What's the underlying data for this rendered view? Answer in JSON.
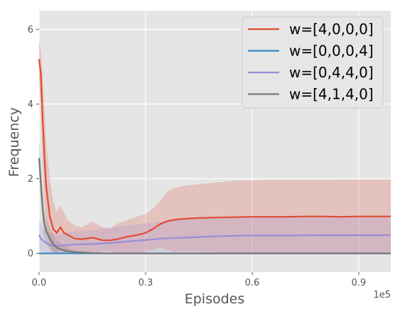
{
  "chart_data": {
    "type": "line",
    "title": "",
    "xlabel": "Episodes",
    "ylabel": "Frequency",
    "x_offset_label": "1e5",
    "xlim": [
      0.0,
      0.99
    ],
    "ylim": [
      -0.5,
      6.5
    ],
    "xticks": [
      0.0,
      0.3,
      0.6,
      0.9
    ],
    "xtick_labels": [
      "0.0",
      "0.3",
      "0.6",
      "0.9"
    ],
    "yticks": [
      0,
      2,
      4,
      6
    ],
    "ytick_labels": [
      "0",
      "2",
      "4",
      "6"
    ],
    "grid": true,
    "legend_position": "top-right",
    "series": [
      {
        "name": "w=[4,0,0,0]",
        "color": "#E24A33",
        "x": [
          0.0,
          0.005,
          0.01,
          0.015,
          0.02,
          0.03,
          0.04,
          0.05,
          0.06,
          0.07,
          0.08,
          0.1,
          0.12,
          0.15,
          0.18,
          0.2,
          0.22,
          0.25,
          0.28,
          0.3,
          0.32,
          0.34,
          0.36,
          0.38,
          0.4,
          0.45,
          0.5,
          0.55,
          0.6,
          0.65,
          0.7,
          0.75,
          0.8,
          0.85,
          0.9,
          0.95,
          0.99
        ],
        "y": [
          5.2,
          4.8,
          3.6,
          2.6,
          1.8,
          1.0,
          0.65,
          0.55,
          0.7,
          0.55,
          0.5,
          0.4,
          0.38,
          0.42,
          0.35,
          0.35,
          0.38,
          0.45,
          0.5,
          0.55,
          0.65,
          0.78,
          0.86,
          0.9,
          0.92,
          0.95,
          0.96,
          0.97,
          0.98,
          0.98,
          0.98,
          0.99,
          0.99,
          0.98,
          0.99,
          0.99,
          0.99
        ],
        "band_upper": [
          5.7,
          5.4,
          4.8,
          3.8,
          3.0,
          2.0,
          1.4,
          1.1,
          1.3,
          1.1,
          0.9,
          0.75,
          0.7,
          0.85,
          0.7,
          0.65,
          0.8,
          0.9,
          1.0,
          1.05,
          1.2,
          1.4,
          1.65,
          1.75,
          1.8,
          1.85,
          1.9,
          1.95,
          1.95,
          1.97,
          1.97,
          1.97,
          1.97,
          1.97,
          1.98,
          1.98,
          1.98
        ],
        "band_lower": [
          4.6,
          4.0,
          2.4,
          1.4,
          0.7,
          0.2,
          0.05,
          0.0,
          0.1,
          0.0,
          0.05,
          0.05,
          0.05,
          0.0,
          0.05,
          0.05,
          0.0,
          0.0,
          0.0,
          0.05,
          0.1,
          0.15,
          0.1,
          0.05,
          0.05,
          0.05,
          0.02,
          0.0,
          0.0,
          0.0,
          0.0,
          0.0,
          0.0,
          0.0,
          0.0,
          0.0,
          0.0
        ]
      },
      {
        "name": "w=[0,0,0,4]",
        "color": "#348ABD",
        "x": [
          0.0,
          0.05,
          0.1,
          0.2,
          0.3,
          0.4,
          0.5,
          0.6,
          0.7,
          0.8,
          0.9,
          0.99
        ],
        "y": [
          0.0,
          0.0,
          0.0,
          0.0,
          0.0,
          0.0,
          0.0,
          0.0,
          0.0,
          0.0,
          0.0,
          0.0
        ]
      },
      {
        "name": "w=[0,4,4,0]",
        "color": "#988ED5",
        "x": [
          0.0,
          0.005,
          0.01,
          0.02,
          0.03,
          0.05,
          0.08,
          0.1,
          0.15,
          0.2,
          0.25,
          0.3,
          0.35,
          0.4,
          0.45,
          0.5,
          0.55,
          0.6,
          0.65,
          0.7,
          0.8,
          0.9,
          0.99
        ],
        "y": [
          0.5,
          0.4,
          0.35,
          0.28,
          0.22,
          0.2,
          0.22,
          0.24,
          0.25,
          0.28,
          0.32,
          0.36,
          0.4,
          0.42,
          0.44,
          0.46,
          0.47,
          0.48,
          0.48,
          0.48,
          0.49,
          0.49,
          0.49
        ],
        "band_upper": [
          0.9,
          0.8,
          0.7,
          0.6,
          0.55,
          0.5,
          0.55,
          0.6,
          0.62,
          0.7,
          0.75,
          0.8,
          0.85,
          0.9,
          0.93,
          0.95,
          0.97,
          0.98,
          0.98,
          0.98,
          0.98,
          0.98,
          0.98
        ],
        "band_lower": [
          0.1,
          0.05,
          0.02,
          0.0,
          0.0,
          0.0,
          0.0,
          0.0,
          0.0,
          0.0,
          0.0,
          0.0,
          0.0,
          0.0,
          0.0,
          0.0,
          0.0,
          0.0,
          0.0,
          0.0,
          0.0,
          0.0,
          0.0
        ]
      },
      {
        "name": "w=[4,1,4,0]",
        "color": "#777777",
        "x": [
          0.0,
          0.005,
          0.01,
          0.015,
          0.02,
          0.03,
          0.04,
          0.05,
          0.07,
          0.1,
          0.15,
          0.2,
          0.3,
          0.4,
          0.5,
          0.6,
          0.7,
          0.8,
          0.9,
          0.99
        ],
        "y": [
          2.55,
          1.9,
          1.2,
          0.8,
          0.6,
          0.4,
          0.25,
          0.15,
          0.08,
          0.03,
          0.01,
          0.0,
          0.0,
          0.0,
          0.0,
          0.0,
          0.0,
          0.0,
          0.0,
          0.0
        ],
        "band_upper": [
          3.0,
          2.4,
          1.7,
          1.2,
          0.95,
          0.7,
          0.5,
          0.35,
          0.2,
          0.08,
          0.03,
          0.01,
          0.01,
          0.01,
          0.01,
          0.01,
          0.01,
          0.01,
          0.01,
          0.01
        ],
        "band_lower": [
          2.1,
          1.4,
          0.7,
          0.4,
          0.25,
          0.1,
          0.0,
          0.0,
          0.0,
          0.0,
          0.0,
          0.0,
          0.0,
          0.0,
          0.0,
          0.0,
          0.0,
          0.0,
          0.0,
          0.0
        ]
      }
    ]
  },
  "colors": {
    "plot_background": "#E5E5E5",
    "grid": "#FFFFFF",
    "text": "#555555"
  }
}
